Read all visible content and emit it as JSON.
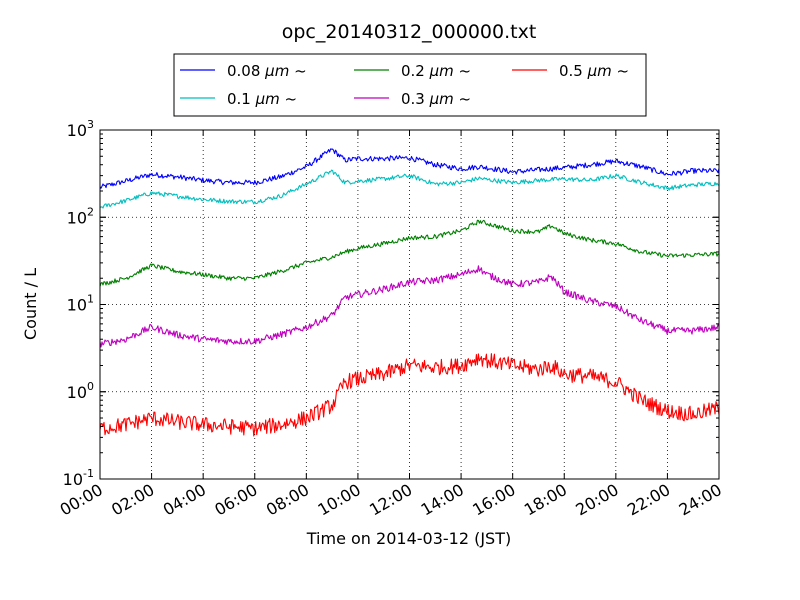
{
  "chart_data": {
    "type": "line",
    "title": "opc_20140312_000000.txt",
    "xlabel": "Time on 2014-03-12 (JST)",
    "ylabel": "Count / L",
    "xlim": [
      "2014-03-12 00:00",
      "2014-03-13 00:00"
    ],
    "ylim": [
      0.1,
      1000
    ],
    "yscale": "log",
    "grid": true,
    "legend_position": "top, outside plot",
    "x_tick_labels": [
      "00:00",
      "02:00",
      "04:00",
      "06:00",
      "08:00",
      "10:00",
      "12:00",
      "14:00",
      "16:00",
      "18:00",
      "20:00",
      "22:00",
      "24:00"
    ],
    "y_ticks": [
      {
        "base": "10",
        "exp": "-1"
      },
      {
        "base": "10",
        "exp": "0"
      },
      {
        "base": "10",
        "exp": "1"
      },
      {
        "base": "10",
        "exp": "2"
      },
      {
        "base": "10",
        "exp": "3"
      }
    ],
    "x_hours": [
      0,
      1,
      2,
      3,
      4,
      5,
      6,
      7,
      8,
      9,
      9.5,
      10,
      11,
      12,
      13,
      14,
      14.7,
      15,
      16,
      17,
      17.5,
      18,
      19,
      20,
      21,
      22,
      23,
      24
    ],
    "series": [
      {
        "name": "0.08 μm ~",
        "label_size": "0.08",
        "label_unit": "μm",
        "label_tilde": "~",
        "color": "#0000ff",
        "values": [
          220,
          260,
          310,
          290,
          265,
          250,
          250,
          290,
          380,
          600,
          450,
          470,
          470,
          480,
          400,
          360,
          380,
          370,
          330,
          350,
          360,
          370,
          400,
          440,
          380,
          310,
          340,
          340
        ]
      },
      {
        "name": "0.1 μm ~",
        "label_size": "0.1",
        "label_unit": "μm",
        "label_tilde": "~",
        "color": "#00bfbf",
        "values": [
          130,
          155,
          190,
          175,
          160,
          152,
          150,
          175,
          240,
          340,
          250,
          260,
          275,
          300,
          240,
          250,
          280,
          270,
          250,
          265,
          270,
          275,
          265,
          300,
          250,
          215,
          235,
          245
        ]
      },
      {
        "name": "0.2 μm ~",
        "label_size": "0.2",
        "label_unit": "μm",
        "label_tilde": "~",
        "color": "#008000",
        "values": [
          17,
          20,
          28,
          24,
          22,
          20,
          20,
          24,
          30,
          35,
          40,
          44,
          50,
          58,
          60,
          70,
          90,
          85,
          70,
          68,
          80,
          65,
          55,
          50,
          40,
          36,
          37,
          38
        ]
      },
      {
        "name": "0.3 μm ~",
        "label_size": "0.3",
        "label_unit": "μm",
        "label_tilde": "~",
        "color": "#bf00bf",
        "values": [
          3.5,
          4,
          5.5,
          4.5,
          4,
          3.8,
          3.8,
          4.5,
          5.5,
          7.5,
          12,
          13,
          15,
          18,
          19,
          22,
          26,
          22,
          17,
          18,
          21,
          14,
          11,
          9.5,
          6.5,
          5,
          5,
          5.5
        ]
      },
      {
        "name": "0.5 μm ~",
        "label_size": "0.5",
        "label_unit": "μm",
        "label_tilde": "~",
        "color": "#ff0000",
        "values": [
          0.38,
          0.42,
          0.5,
          0.45,
          0.42,
          0.4,
          0.38,
          0.42,
          0.5,
          0.7,
          1.3,
          1.4,
          1.6,
          2.0,
          1.9,
          2.0,
          2.5,
          2.3,
          2.0,
          1.8,
          2.0,
          1.6,
          1.5,
          1.3,
          0.8,
          0.6,
          0.55,
          0.65
        ]
      }
    ]
  }
}
